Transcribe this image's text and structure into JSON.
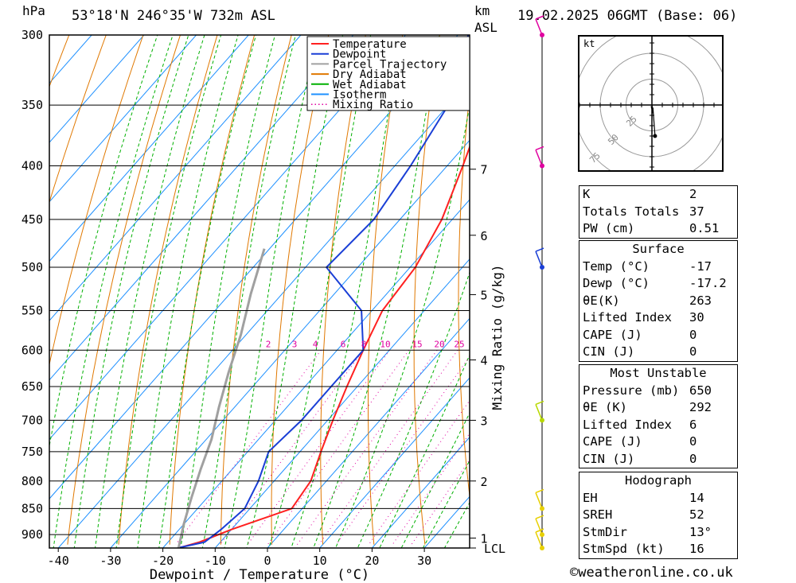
{
  "header": {
    "pressure_unit": "hPa",
    "location": "53°18'N  246°35'W  732m  ASL",
    "height_unit_line1": "km",
    "height_unit_line2": "ASL",
    "datetime": "19.02.2025  06GMT  (Base: 06)"
  },
  "chart_data": {
    "type": "line",
    "title": "",
    "xlabel": "Dewpoint / Temperature (°C)",
    "ylabel": "",
    "x_ticks": [
      -40,
      -30,
      -20,
      -10,
      0,
      10,
      20,
      30
    ],
    "pressure_levels": [
      300,
      350,
      400,
      450,
      500,
      550,
      600,
      650,
      700,
      750,
      800,
      850,
      900
    ],
    "bottom_pressure": 927,
    "km_ticks": [
      {
        "label": "7",
        "p": 403
      },
      {
        "label": "6",
        "p": 466
      },
      {
        "label": "5",
        "p": 531
      },
      {
        "label": "4",
        "p": 613
      },
      {
        "label": "3",
        "p": 700
      },
      {
        "label": "2",
        "p": 800
      },
      {
        "label": "1",
        "p": 907
      },
      {
        "label": "LCL",
        "p": 927
      }
    ],
    "mixing_ratio_axis_label": "Mixing Ratio (g/kg)",
    "mixing_ratio_labels": [
      "2",
      "3",
      "4",
      "6",
      "8",
      "10",
      "15",
      "20",
      "25"
    ],
    "legend": {
      "placement": "top-right of plot",
      "entries": [
        {
          "name": "Temperature",
          "color": "#ff2020",
          "style": "solid"
        },
        {
          "name": "Dewpoint",
          "color": "#1a3fd6",
          "style": "solid"
        },
        {
          "name": "Parcel Trajectory",
          "color": "#a0a0a0",
          "style": "solid"
        },
        {
          "name": "Dry Adiabat",
          "color": "#e07800",
          "style": "solid"
        },
        {
          "name": "Wet Adiabat",
          "color": "#00b000",
          "style": "solid"
        },
        {
          "name": "Isotherm",
          "color": "#1e90ff",
          "style": "solid"
        },
        {
          "name": "Mixing Ratio",
          "color": "#e000a0",
          "style": "dotted"
        }
      ]
    },
    "series": [
      {
        "name": "Temperature",
        "color": "#ff2020",
        "points": [
          [
            -17,
            927
          ],
          [
            -14,
            915
          ],
          [
            -10,
            890
          ],
          [
            -2,
            850
          ],
          [
            -3,
            800
          ],
          [
            -6,
            750
          ],
          [
            -9,
            700
          ],
          [
            -12,
            650
          ],
          [
            -15,
            600
          ],
          [
            -18,
            550
          ],
          [
            -19,
            500
          ],
          [
            -22,
            450
          ],
          [
            -27,
            400
          ],
          [
            -33,
            350
          ],
          [
            -37,
            300
          ]
        ]
      },
      {
        "name": "Dewpoint",
        "color": "#1a3fd6",
        "points": [
          [
            -17.2,
            927
          ],
          [
            -13,
            915
          ],
          [
            -12,
            890
          ],
          [
            -11,
            850
          ],
          [
            -13,
            800
          ],
          [
            -16,
            750
          ],
          [
            -15,
            700
          ],
          [
            -15,
            650
          ],
          [
            -15,
            600
          ],
          [
            -22,
            550
          ],
          [
            -36,
            500
          ],
          [
            -35,
            450
          ],
          [
            -37,
            400
          ],
          [
            -40,
            350
          ],
          [
            -48,
            300
          ]
        ]
      },
      {
        "name": "Parcel Trajectory",
        "color": "#a0a0a0",
        "points": [
          [
            -17,
            927
          ],
          [
            -20,
            880
          ],
          [
            -23,
            830
          ],
          [
            -26,
            780
          ],
          [
            -29,
            730
          ],
          [
            -33,
            680
          ],
          [
            -37,
            630
          ],
          [
            -41,
            580
          ],
          [
            -46,
            530
          ],
          [
            -51,
            480
          ]
        ]
      }
    ]
  },
  "hodograph": {
    "unit": "kt",
    "ring_labels": [
      "25",
      "50",
      "75"
    ],
    "points": [
      [
        0,
        0
      ],
      [
        0.3,
        -1.5
      ],
      [
        0.6,
        -4
      ],
      [
        1,
        -8
      ],
      [
        -0.5,
        -2
      ],
      [
        1,
        -3
      ],
      [
        3,
        -30
      ]
    ]
  },
  "indices": {
    "rows": [
      {
        "label": "K",
        "value": "2"
      },
      {
        "label": "Totals Totals",
        "value": "37"
      },
      {
        "label": "PW (cm)",
        "value": "0.51"
      }
    ]
  },
  "surface": {
    "title": "Surface",
    "rows": [
      {
        "label": "Temp (°C)",
        "value": "-17"
      },
      {
        "label": "Dewp (°C)",
        "value": "-17.2"
      },
      {
        "label": "θE(K)",
        "value": "263"
      },
      {
        "label": "Lifted Index",
        "value": "30"
      },
      {
        "label": "CAPE (J)",
        "value": "0"
      },
      {
        "label": "CIN (J)",
        "value": "0"
      }
    ]
  },
  "most_unstable": {
    "title": "Most Unstable",
    "rows": [
      {
        "label": "Pressure (mb)",
        "value": "650"
      },
      {
        "label": "θE (K)",
        "value": "292"
      },
      {
        "label": "Lifted Index",
        "value": "6"
      },
      {
        "label": "CAPE (J)",
        "value": "0"
      },
      {
        "label": "CIN (J)",
        "value": "0"
      }
    ]
  },
  "hodograph_table": {
    "title": "Hodograph",
    "rows": [
      {
        "label": "EH",
        "value": "14"
      },
      {
        "label": "SREH",
        "value": "52"
      },
      {
        "label": "StmDir",
        "value": "13°"
      },
      {
        "label": "StmSpd (kt)",
        "value": "16"
      }
    ]
  },
  "wind_profile": {
    "barbs": [
      {
        "p": 300,
        "color": "#e000a0"
      },
      {
        "p": 400,
        "color": "#e000a0"
      },
      {
        "p": 500,
        "color": "#1a3fd6"
      },
      {
        "p": 700,
        "color": "#b8d800"
      },
      {
        "p": 850,
        "color": "#e8d000"
      },
      {
        "p": 900,
        "color": "#e8d000"
      },
      {
        "p": 927,
        "color": "#e8d000"
      }
    ]
  },
  "copyright": "©weatheronline.co.uk"
}
